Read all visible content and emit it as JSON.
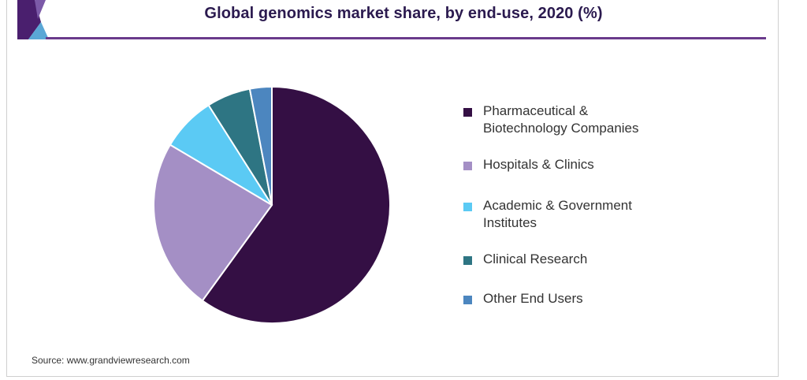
{
  "title": "Global genomics market share, by end-use, 2020 (%)",
  "source": "Source: www.grandviewresearch.com",
  "chart_data": {
    "type": "pie",
    "title": "Global genomics market share, by end-use, 2020 (%)",
    "series": [
      {
        "name": "Pharmaceutical &\nBiotechnology Companies",
        "value": 60.0,
        "color": "#340f44"
      },
      {
        "name": "Hospitals & Clinics",
        "value": 23.5,
        "color": "#a48fc5"
      },
      {
        "name": "Academic & Government\nInstitutes",
        "value": 7.5,
        "color": "#5bcaf4"
      },
      {
        "name": "Clinical Research",
        "value": 6.0,
        "color": "#2e7583"
      },
      {
        "name": "Other End Users",
        "value": 3.0,
        "color": "#4c86bf"
      }
    ],
    "legend_position": "right"
  }
}
